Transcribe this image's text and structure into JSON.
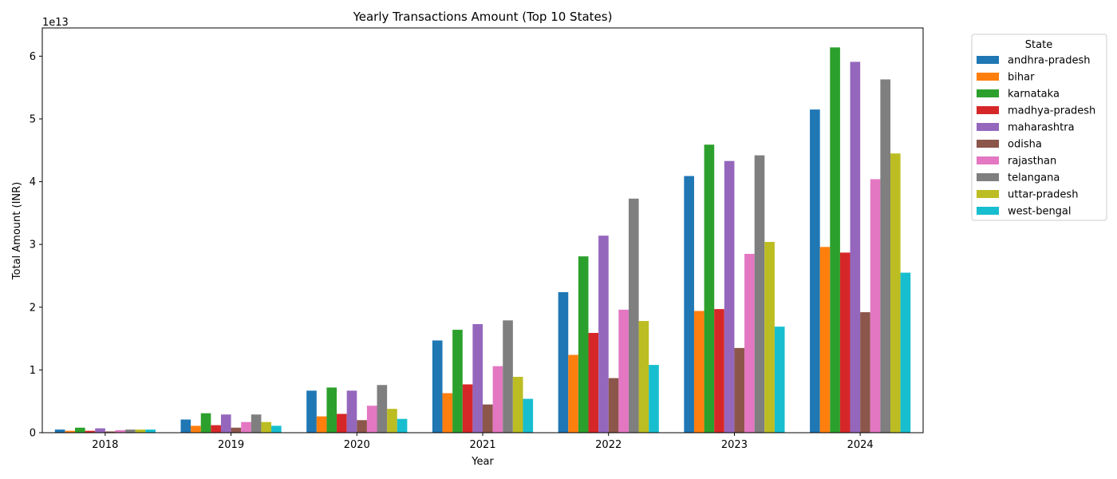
{
  "chart_data": {
    "type": "bar",
    "title": "Yearly Transactions Amount (Top 10 States)",
    "xlabel": "Year",
    "ylabel": "Total Amount (INR)",
    "y_offset_text": "1e13",
    "ylim": [
      0,
      6.45
    ],
    "yticks": [
      0,
      1,
      2,
      3,
      4,
      5,
      6
    ],
    "grid": false,
    "legend": {
      "title": "State",
      "placement": "outside-right"
    },
    "categories": [
      "2018",
      "2019",
      "2020",
      "2021",
      "2022",
      "2023",
      "2024"
    ],
    "series": [
      {
        "name": "andhra-pradesh",
        "color": "#1f77b4",
        "values": [
          0.05,
          0.21,
          0.67,
          1.47,
          2.24,
          4.09,
          5.15
        ]
      },
      {
        "name": "bihar",
        "color": "#ff7f0e",
        "values": [
          0.03,
          0.11,
          0.26,
          0.63,
          1.24,
          1.94,
          2.96
        ]
      },
      {
        "name": "karnataka",
        "color": "#2ca02c",
        "values": [
          0.08,
          0.31,
          0.72,
          1.64,
          2.81,
          4.59,
          6.14
        ]
      },
      {
        "name": "madhya-pradesh",
        "color": "#d62728",
        "values": [
          0.03,
          0.12,
          0.3,
          0.77,
          1.59,
          1.97,
          2.87
        ]
      },
      {
        "name": "maharashtra",
        "color": "#9467bd",
        "values": [
          0.07,
          0.29,
          0.67,
          1.73,
          3.14,
          4.33,
          5.91
        ]
      },
      {
        "name": "odisha",
        "color": "#8c564b",
        "values": [
          0.02,
          0.08,
          0.2,
          0.45,
          0.87,
          1.35,
          1.92
        ]
      },
      {
        "name": "rajasthan",
        "color": "#e377c2",
        "values": [
          0.04,
          0.17,
          0.43,
          1.06,
          1.96,
          2.85,
          4.04
        ]
      },
      {
        "name": "telangana",
        "color": "#7f7f7f",
        "values": [
          0.05,
          0.29,
          0.76,
          1.79,
          3.73,
          4.42,
          5.63
        ]
      },
      {
        "name": "uttar-pradesh",
        "color": "#bcbd22",
        "values": [
          0.05,
          0.17,
          0.38,
          0.89,
          1.78,
          3.04,
          4.45
        ]
      },
      {
        "name": "west-bengal",
        "color": "#17becf",
        "values": [
          0.05,
          0.11,
          0.22,
          0.54,
          1.08,
          1.69,
          2.55
        ]
      }
    ]
  }
}
